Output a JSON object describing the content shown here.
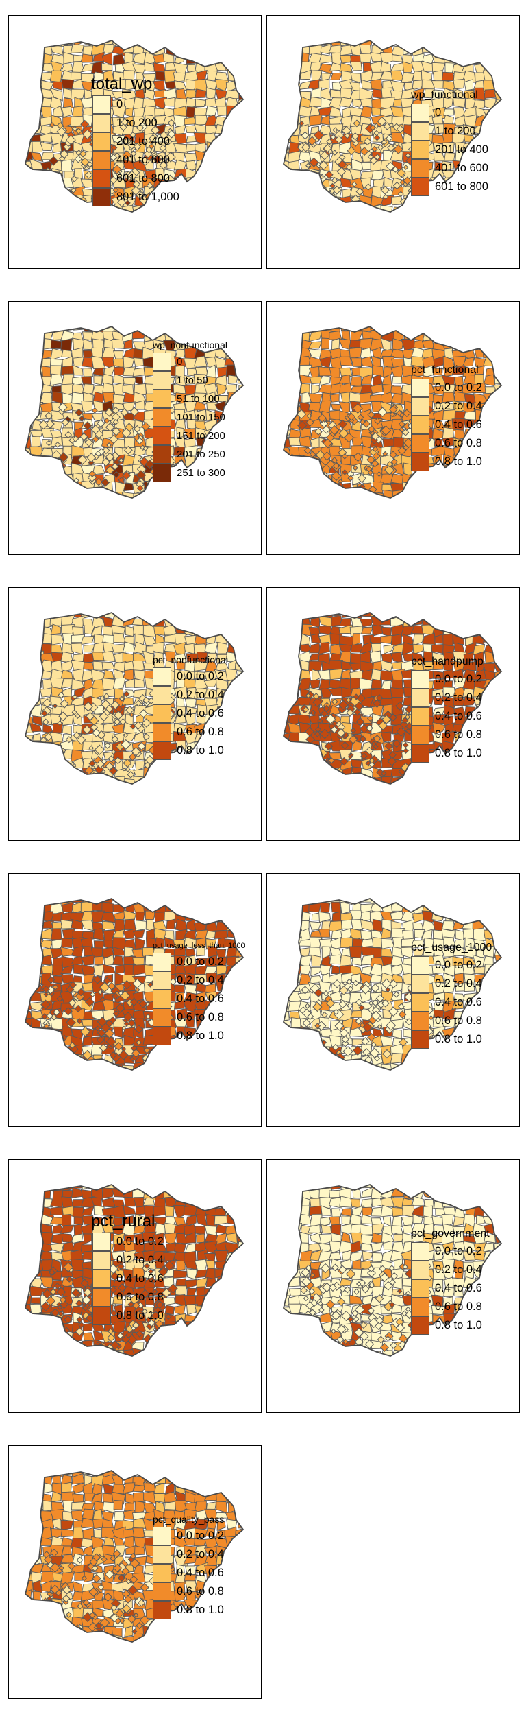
{
  "map_colors": {
    "background": "#ffffff",
    "border": "#5a5a5a",
    "palette": [
      "#fff7c6",
      "#fde39c",
      "#fbc057",
      "#f18b2a",
      "#d55312",
      "#8f2f0a"
    ]
  },
  "panels": [
    {
      "title": "total_wp",
      "title_size": "big",
      "items": [
        {
          "label": "0",
          "color": "#fff7c6"
        },
        {
          "label": "1 to 200",
          "color": "#fde39c"
        },
        {
          "label": "201 to 400",
          "color": "#fbc057"
        },
        {
          "label": "401 to 600",
          "color": "#f18b2a"
        },
        {
          "label": "601 to 800",
          "color": "#d55312"
        },
        {
          "label": "801 to 1,000",
          "color": "#8f2f0a"
        }
      ],
      "dominant": 1
    },
    {
      "title": "wp_functional",
      "title_size": "normal",
      "items": [
        {
          "label": "0",
          "color": "#fff7c6"
        },
        {
          "label": "1 to 200",
          "color": "#fde39c"
        },
        {
          "label": "201 to 400",
          "color": "#fbc057"
        },
        {
          "label": "401 to 600",
          "color": "#f18b2a"
        },
        {
          "label": "601 to 800",
          "color": "#d55312"
        }
      ],
      "dominant": 1
    },
    {
      "title": "wp_nonfunctional",
      "title_size": "small",
      "items": [
        {
          "label": "0",
          "color": "#fff7c6"
        },
        {
          "label": "1 to 50",
          "color": "#fde39c"
        },
        {
          "label": "51 to 100",
          "color": "#fbc057"
        },
        {
          "label": "101 to 150",
          "color": "#f18b2a"
        },
        {
          "label": "151 to 200",
          "color": "#d55312"
        },
        {
          "label": "201 to 250",
          "color": "#a8400c"
        },
        {
          "label": "251 to 300",
          "color": "#7a2a08"
        }
      ],
      "dominant": 1
    },
    {
      "title": "pct_functional",
      "title_size": "normal",
      "items": [
        {
          "label": "0.0 to 0.2",
          "color": "#fff7c6"
        },
        {
          "label": "0.2 to 0.4",
          "color": "#fde39c"
        },
        {
          "label": "0.4 to 0.6",
          "color": "#fbc057"
        },
        {
          "label": "0.6 to 0.8",
          "color": "#f18b2a"
        },
        {
          "label": "0.8 to 1.0",
          "color": "#c2490f"
        }
      ],
      "dominant": 3
    },
    {
      "title": "pct_nonfunctional",
      "title_size": "small",
      "items": [
        {
          "label": "0.0 to 0.2",
          "color": "#fff7c6"
        },
        {
          "label": "0.2 to 0.4",
          "color": "#fde39c"
        },
        {
          "label": "0.4 to 0.6",
          "color": "#fbc057"
        },
        {
          "label": "0.6 to 0.8",
          "color": "#f18b2a"
        },
        {
          "label": "0.8 to 1.0",
          "color": "#c2490f"
        }
      ],
      "dominant": 1
    },
    {
      "title": "pct_handpump",
      "title_size": "normal",
      "items": [
        {
          "label": "0.0 to 0.2",
          "color": "#fff7c6"
        },
        {
          "label": "0.2 to 0.4",
          "color": "#fde39c"
        },
        {
          "label": "0.4 to 0.6",
          "color": "#fbc057"
        },
        {
          "label": "0.6 to 0.8",
          "color": "#f18b2a"
        },
        {
          "label": "0.8 to 1.0",
          "color": "#c2490f"
        }
      ],
      "dominant": 4
    },
    {
      "title": "pct_usage_less_than_1000",
      "title_size": "tiny",
      "items": [
        {
          "label": "0.0 to 0.2",
          "color": "#fff7c6"
        },
        {
          "label": "0.2 to 0.4",
          "color": "#fde39c"
        },
        {
          "label": "0.4 to 0.6",
          "color": "#fbc057"
        },
        {
          "label": "0.6 to 0.8",
          "color": "#f18b2a"
        },
        {
          "label": "0.8 to 1.0",
          "color": "#c2490f"
        }
      ],
      "dominant": 4
    },
    {
      "title": "pct_usage_1000",
      "title_size": "normal",
      "items": [
        {
          "label": "0.0 to 0.2",
          "color": "#fff7c6"
        },
        {
          "label": "0.2 to 0.4",
          "color": "#fde39c"
        },
        {
          "label": "0.4 to 0.6",
          "color": "#fbc057"
        },
        {
          "label": "0.6 to 0.8",
          "color": "#f18b2a"
        },
        {
          "label": "0.8 to 1.0",
          "color": "#c2490f"
        }
      ],
      "dominant": 0
    },
    {
      "title": "pct_rural",
      "title_size": "big",
      "items": [
        {
          "label": "0.0 to 0.2",
          "color": "#fff7c6"
        },
        {
          "label": "0.2 to 0.4",
          "color": "#fde39c"
        },
        {
          "label": "0.4 to 0.6",
          "color": "#fbc057"
        },
        {
          "label": "0.6 to 0.8",
          "color": "#f18b2a"
        },
        {
          "label": "0.8 to 1.0",
          "color": "#c2490f"
        }
      ],
      "dominant": 4
    },
    {
      "title": "pct_government",
      "title_size": "normal",
      "items": [
        {
          "label": "0.0 to 0.2",
          "color": "#fff7c6"
        },
        {
          "label": "0.2 to 0.4",
          "color": "#fde39c"
        },
        {
          "label": "0.4 to 0.6",
          "color": "#fbc057"
        },
        {
          "label": "0.6 to 0.8",
          "color": "#f18b2a"
        },
        {
          "label": "0.8 to 1.0",
          "color": "#c2490f"
        }
      ],
      "dominant": 0
    },
    {
      "title": "pct_quality_pass",
      "title_size": "small",
      "items": [
        {
          "label": "0.0 to 0.2",
          "color": "#fff7c6"
        },
        {
          "label": "0.2 to 0.4",
          "color": "#fde39c"
        },
        {
          "label": "0.4 to 0.6",
          "color": "#fbc057"
        },
        {
          "label": "0.6 to 0.8",
          "color": "#f18b2a"
        },
        {
          "label": "0.8 to 1.0",
          "color": "#c2490f"
        }
      ],
      "dominant": 3
    }
  ]
}
